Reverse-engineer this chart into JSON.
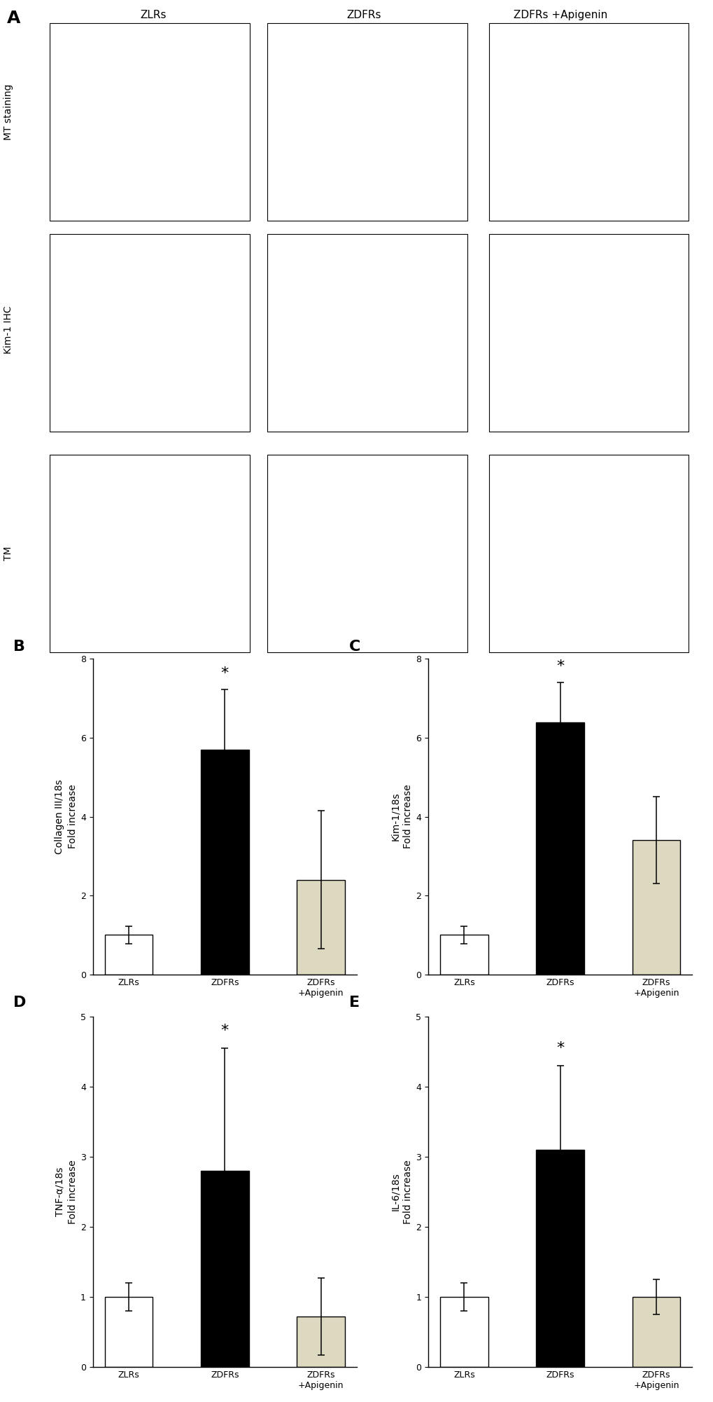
{
  "panel_A_label": "A",
  "panel_B_label": "B",
  "panel_C_label": "C",
  "panel_D_label": "D",
  "panel_E_label": "E",
  "col_labels": [
    "ZLRs",
    "ZDFRs",
    "ZDFRs +Apigenin"
  ],
  "row_labels": [
    "MT staining",
    "Kim-1 IHC",
    "TM"
  ],
  "B_ylabel_line1": "Collagen III/18s",
  "B_ylabel_line2": "Fold increase",
  "B_values": [
    1.0,
    5.7,
    2.4
  ],
  "B_errors": [
    0.22,
    1.52,
    1.75
  ],
  "B_colors": [
    "#ffffff",
    "#000000",
    "#ddd8c0"
  ],
  "B_ylim": [
    0,
    8
  ],
  "B_yticks": [
    0,
    2,
    4,
    6,
    8
  ],
  "B_sig_bar": 1,
  "C_ylabel_line1": "Kim-1/18s",
  "C_ylabel_line2": "Fold increase",
  "C_values": [
    1.0,
    6.4,
    3.4
  ],
  "C_errors": [
    0.22,
    1.0,
    1.1
  ],
  "C_colors": [
    "#ffffff",
    "#000000",
    "#ddd8c0"
  ],
  "C_ylim": [
    0,
    8
  ],
  "C_yticks": [
    0,
    2,
    4,
    6,
    8
  ],
  "C_sig_bar": 1,
  "D_ylabel_line1": "TNF-α/18s",
  "D_ylabel_line2": "Fold increase",
  "D_values": [
    1.0,
    2.8,
    0.72
  ],
  "D_errors": [
    0.2,
    1.75,
    0.55
  ],
  "D_colors": [
    "#ffffff",
    "#000000",
    "#ddd8c0"
  ],
  "D_ylim": [
    0,
    5
  ],
  "D_yticks": [
    0,
    1,
    2,
    3,
    4,
    5
  ],
  "D_sig_bar": 1,
  "E_ylabel_line1": "IL-6/18s",
  "E_ylabel_line2": "Fold increase",
  "E_values": [
    1.0,
    3.1,
    1.0
  ],
  "E_errors": [
    0.2,
    1.2,
    0.25
  ],
  "E_colors": [
    "#ffffff",
    "#000000",
    "#ddd8c0"
  ],
  "E_ylim": [
    0,
    5
  ],
  "E_yticks": [
    0,
    1,
    2,
    3,
    4,
    5
  ],
  "E_sig_bar": 1,
  "xticklabels": [
    "ZLRs",
    "ZDFRs",
    "ZDFRs\n+Apigenin"
  ],
  "background_color": "#ffffff",
  "bar_width": 0.5,
  "fontsize_label": 10,
  "fontsize_tick": 9,
  "fontsize_panel": 16,
  "fontsize_star": 16,
  "fontsize_col_label": 11,
  "fontsize_row_label": 10
}
